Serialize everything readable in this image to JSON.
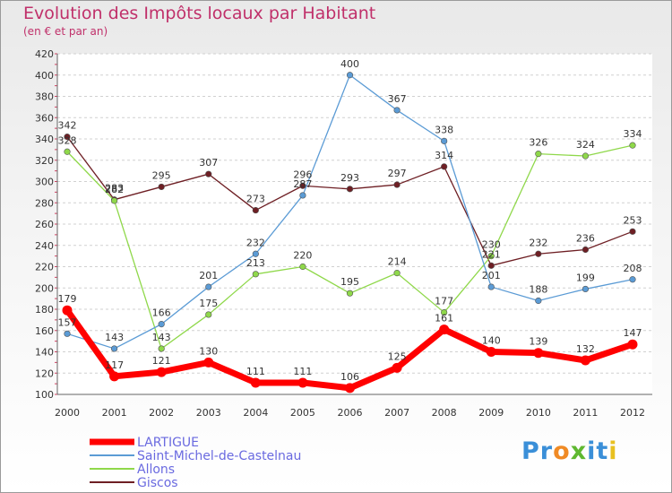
{
  "chart_data": {
    "type": "line",
    "title": "Evolution des Impôts locaux par Habitant",
    "subtitle": "(en € et par an)",
    "xlabel": "",
    "ylabel": "",
    "ylim": [
      100,
      420
    ],
    "yticks": [
      100,
      120,
      140,
      160,
      180,
      200,
      220,
      240,
      260,
      280,
      300,
      320,
      340,
      360,
      380,
      400,
      420
    ],
    "x": [
      "2000",
      "2001",
      "2002",
      "2003",
      "2004",
      "2005",
      "2006",
      "2007",
      "2008",
      "2009",
      "2010",
      "2011",
      "2012"
    ],
    "grid": "horizontal-dashed",
    "legend_position": "bottom-left",
    "series": [
      {
        "name": "LARTIGUE",
        "color": "#ff0000",
        "values": [
          179,
          117,
          121,
          130,
          111,
          111,
          106,
          125,
          161,
          140,
          139,
          132,
          147
        ]
      },
      {
        "name": "Saint-Michel-de-Castelnau",
        "color": "#5b9bd5",
        "values": [
          157,
          143,
          166,
          201,
          232,
          287,
          400,
          367,
          338,
          201,
          188,
          199,
          208
        ]
      },
      {
        "name": "Allons",
        "color": "#8fd84a",
        "values": [
          328,
          282,
          143,
          175,
          213,
          220,
          195,
          214,
          177,
          230,
          326,
          324,
          334
        ]
      },
      {
        "name": "Giscos",
        "color": "#6e1f24",
        "values": [
          342,
          283,
          295,
          307,
          273,
          296,
          293,
          297,
          314,
          221,
          232,
          236,
          253
        ]
      }
    ]
  },
  "logo": {
    "text": "Proxiti",
    "letters": [
      "P",
      "r",
      "o",
      "x",
      "i",
      "t",
      "i"
    ],
    "colors": [
      "#3a8fd8",
      "#3a8fd8",
      "#f08a24",
      "#5fb830",
      "#3a8fd8",
      "#3a8fd8",
      "#e8c020"
    ]
  }
}
